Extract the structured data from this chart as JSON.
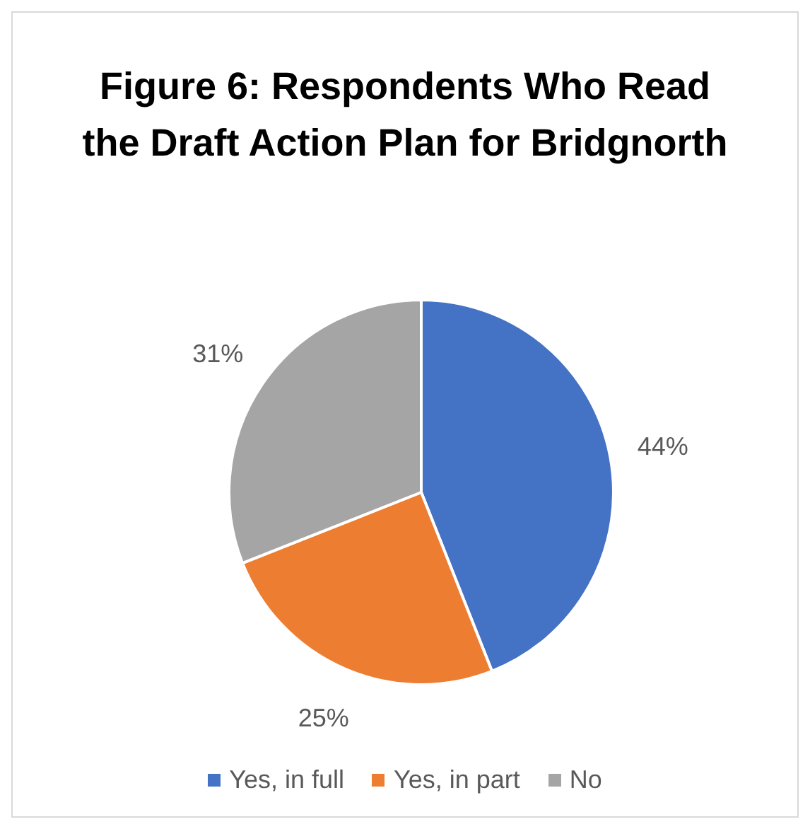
{
  "chart_data": {
    "type": "pie",
    "title": "Figure 6: Respondents Who Read the Draft Action Plan for Bridgnorth",
    "categories": [
      "Yes, in full",
      "Yes, in part",
      "No"
    ],
    "values": [
      44,
      25,
      31
    ],
    "value_labels": [
      "44%",
      "25%",
      "31%"
    ],
    "colors": [
      "#4472c4",
      "#ed7d31",
      "#a5a5a5"
    ],
    "legend": "bottom"
  }
}
